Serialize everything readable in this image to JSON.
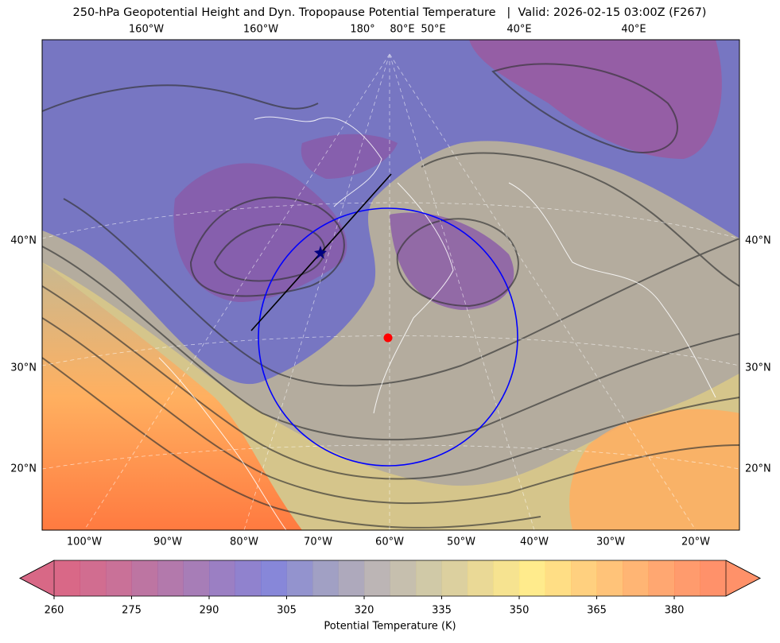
{
  "title": "250-hPa Geopotential Height and Dyn. Tropopause Potential Temperature   |  Valid: 2026-02-15 03:00Z (F267)",
  "map": {
    "top_labels": [
      "160°W",
      "160°W",
      "180°",
      "80°E",
      "50°E",
      "40°E",
      "40°E"
    ],
    "bottom_labels": [
      "100°W",
      "90°W",
      "80°W",
      "70°W",
      "60°W",
      "50°W",
      "40°W",
      "30°W",
      "20°W"
    ],
    "left_labels": [
      "40°N",
      "30°N",
      "20°N"
    ],
    "right_labels": [
      "40°N",
      "30°N",
      "20°N"
    ]
  },
  "colorbar": {
    "label": "Potential Temperature (K)",
    "lim": [
      260,
      390
    ],
    "ticks": [
      260,
      275,
      290,
      305,
      320,
      335,
      350,
      365,
      380
    ],
    "colors": [
      "#d24e72",
      "#c9537c",
      "#bf5886",
      "#b25d92",
      "#a6629e",
      "#9866aa",
      "#8a68b8",
      "#7c6cc6",
      "#7272d2",
      "#8080c6",
      "#908fba",
      "#a09ab0",
      "#b0a8a8",
      "#bcb4a0",
      "#c8c098",
      "#d6c88e",
      "#e6d284",
      "#f4de7c",
      "#ffe878",
      "#ffd870",
      "#ffc868",
      "#ffb862",
      "#ffa85c",
      "#ff9858",
      "#ff8a54",
      "#ff7e50"
    ]
  }
}
